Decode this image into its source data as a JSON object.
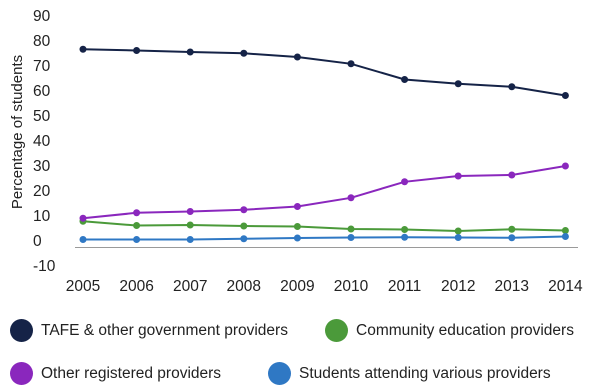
{
  "chart_data": {
    "type": "line",
    "ylabel": "Percentage of students",
    "xlabel": "",
    "x": [
      "2005",
      "2006",
      "2007",
      "2008",
      "2009",
      "2010",
      "2011",
      "2012",
      "2013",
      "2014"
    ],
    "ylim": [
      -10,
      90
    ],
    "yticks": [
      90,
      80,
      70,
      60,
      50,
      40,
      30,
      20,
      10,
      0,
      -10
    ],
    "grid": false,
    "legend_position": "bottom",
    "series": [
      {
        "name": "TAFE & other government providers",
        "color": "#152347",
        "values": [
          76.3,
          75.8,
          75.2,
          74.7,
          73.2,
          70.5,
          64.2,
          62.5,
          61.3,
          57.8
        ]
      },
      {
        "name": "Community education providers",
        "color": "#4b9a3a",
        "values": [
          7.5,
          5.8,
          6.0,
          5.6,
          5.4,
          4.4,
          4.2,
          3.6,
          4.3,
          3.8
        ]
      },
      {
        "name": "Other registered providers",
        "color": "#8a27bd",
        "values": [
          8.7,
          10.9,
          11.4,
          12.1,
          13.4,
          16.9,
          23.3,
          25.6,
          26.0,
          29.6
        ]
      },
      {
        "name": "Students attending various providers",
        "color": "#2f78c4",
        "values": [
          0.2,
          0.2,
          0.2,
          0.5,
          0.8,
          1.0,
          1.1,
          1.0,
          0.9,
          1.4
        ]
      }
    ]
  }
}
